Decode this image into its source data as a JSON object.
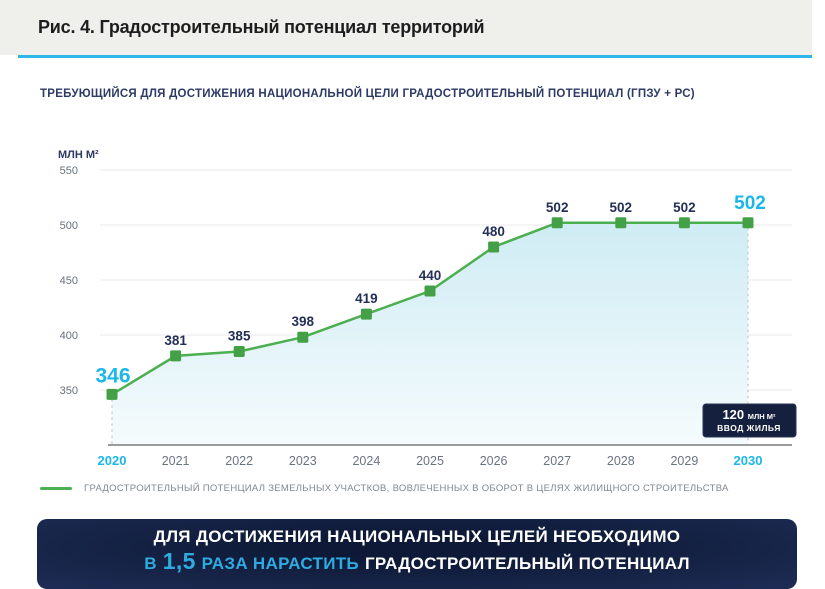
{
  "header": {
    "title": "Рис. 4. Градостроительный потенциал территорий"
  },
  "chart_data": {
    "type": "area",
    "title": "ТРЕБУЮЩИЙСЯ ДЛЯ ДОСТИЖЕНИЯ НАЦИОНАЛЬНОЙ ЦЕЛИ ГРАДОСТРОИТЕЛЬНЫЙ ПОТЕНЦИАЛ (ГПЗУ + РС)",
    "unit": "МЛН М²",
    "categories": [
      "2020",
      "2021",
      "2022",
      "2023",
      "2024",
      "2025",
      "2026",
      "2027",
      "2028",
      "2029",
      "2030"
    ],
    "values": [
      346,
      381,
      385,
      398,
      419,
      440,
      480,
      502,
      502,
      502,
      502
    ],
    "yticks": [
      550,
      500,
      450,
      400,
      350
    ],
    "ylim": [
      300,
      560
    ],
    "grid": true,
    "legend": "ГРАДОСТРОИТЕЛЬНЫЙ ПОТЕНЦИАЛ ЗЕМЕЛЬНЫХ УЧАСТКОВ, ВОВЛЕЧЕННЫХ В ОБОРОТ В ЦЕЛЯХ ЖИЛИЩНОГО СТРОИТЕЛЬСТВА",
    "legend_position": "bottom-left",
    "annotation": {
      "value": "120",
      "unit": "МЛН М²",
      "label": "ВВОД ЖИЛЬЯ"
    },
    "colors": {
      "line": "#4caf50",
      "marker": "#43a047",
      "area_top": "#cfecf4",
      "area_bottom": "#f5fbfd",
      "value_label": "#232f56",
      "highlight": "#1ab7ea",
      "tick": "#66707e",
      "year": "#6a7380",
      "axis": "#9b9b9b",
      "grid": "#e9e9e9",
      "badge_bg": "#151f3e"
    }
  },
  "banner": {
    "line1": "ДЛЯ ДОСТИЖЕНИЯ НАЦИОНАЛЬНЫХ ЦЕЛЕЙ НЕОБХОДИМО",
    "line2_prefix": "В",
    "line2_number": "1,5",
    "line2_mid": "РАЗА НАРАСТИТЬ",
    "line2_suffix": "ГРАДОСТРОИТЕЛЬНЫЙ ПОТЕНЦИАЛ"
  }
}
